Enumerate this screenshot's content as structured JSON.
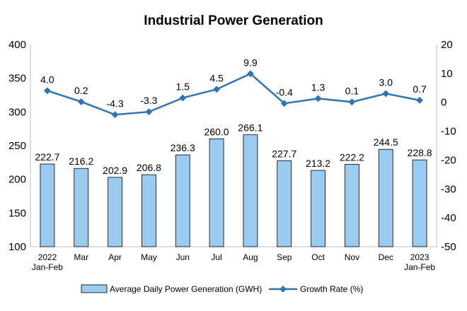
{
  "chart_data": {
    "type": "bar+line",
    "title": "Industrial Power Generation",
    "categories": [
      [
        "2022",
        "Jan-Feb"
      ],
      [
        "Mar"
      ],
      [
        "Apr"
      ],
      [
        "May"
      ],
      [
        "Jun"
      ],
      [
        "Jul"
      ],
      [
        "Aug"
      ],
      [
        "Sep"
      ],
      [
        "Oct"
      ],
      [
        "Nov"
      ],
      [
        "Dec"
      ],
      [
        "2023",
        "Jan-Feb"
      ]
    ],
    "series": [
      {
        "name": "Average Daily Power Generation (GWH)",
        "type": "bar",
        "axis": "left",
        "color": "#9ccbf0",
        "values": [
          222.7,
          216.2,
          202.9,
          206.8,
          236.3,
          260.0,
          266.1,
          227.7,
          213.2,
          222.2,
          244.5,
          228.8
        ],
        "labels": [
          "222.7",
          "216.2",
          "202.9",
          "206.8",
          "236.3",
          "260.0",
          "266.1",
          "227.7",
          "213.2",
          "222.2",
          "244.5",
          "228.8"
        ]
      },
      {
        "name": "Growth Rate (%)",
        "type": "line",
        "axis": "right",
        "color": "#2e75b6",
        "values": [
          4.0,
          0.2,
          -4.3,
          -3.3,
          1.5,
          4.5,
          9.9,
          -0.4,
          1.3,
          0.1,
          3.0,
          0.7
        ],
        "labels": [
          "4.0",
          "0.2",
          "-4.3",
          "-3.3",
          "1.5",
          "4.5",
          "9.9",
          "-0.4",
          "1.3",
          "0.1",
          "3.0",
          "0.7"
        ]
      }
    ],
    "y_left": {
      "min": 100,
      "max": 400,
      "ticks": [
        "100",
        "150",
        "200",
        "250",
        "300",
        "350",
        "400"
      ]
    },
    "y_right": {
      "min": -50,
      "max": 20,
      "ticks": [
        "-50",
        "-40",
        "-30",
        "-20",
        "-10",
        "0",
        "10",
        "20"
      ]
    },
    "grid": false,
    "legend_position": "bottom"
  }
}
